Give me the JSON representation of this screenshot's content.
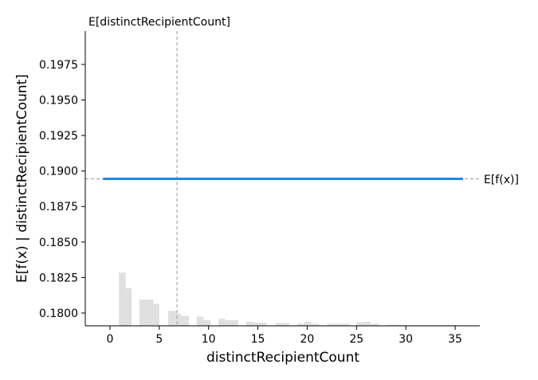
{
  "chart_data": {
    "type": "line",
    "xlabel": "distinctRecipientCount",
    "ylabel": "E[f(x) | distinctRecipientCount]",
    "xlim": [
      -2.5,
      37.5
    ],
    "ylim": [
      0.1791,
      0.19985
    ],
    "x_ticks": [
      0,
      5,
      10,
      15,
      20,
      25,
      30,
      35
    ],
    "y_ticks": [
      0.18,
      0.1825,
      0.185,
      0.1875,
      0.19,
      0.1925,
      0.195,
      0.1975
    ],
    "x_tick_labels": [
      "0",
      "5",
      "10",
      "15",
      "20",
      "25",
      "30",
      "35"
    ],
    "y_tick_labels": [
      "0.1800",
      "0.1825",
      "0.1850",
      "0.1875",
      "0.1900",
      "0.1925",
      "0.1950",
      "0.1975"
    ],
    "series": [
      {
        "x": [
          -0.7,
          35.8
        ],
        "y": [
          0.18945,
          0.18945
        ],
        "color": "#1e88e5"
      }
    ],
    "expected_value_x": 6.8,
    "expected_value_x_label": "E[distinctRecipientCount]",
    "expected_value_y": 0.18945,
    "expected_value_y_label": "E[f(x)]",
    "histogram": {
      "color": "#e0e0e0",
      "bins": [
        {
          "x0": 0.9,
          "x1": 1.6,
          "h": 0.00375
        },
        {
          "x0": 1.6,
          "x1": 2.2,
          "h": 0.00265
        },
        {
          "x0": 3.0,
          "x1": 4.4,
          "h": 0.00185
        },
        {
          "x0": 4.4,
          "x1": 5.0,
          "h": 0.00155
        },
        {
          "x0": 5.9,
          "x1": 6.8,
          "h": 0.00105
        },
        {
          "x0": 6.8,
          "x1": 7.2,
          "h": 0.00085
        },
        {
          "x0": 7.2,
          "x1": 8.0,
          "h": 0.0007
        },
        {
          "x0": 8.8,
          "x1": 9.5,
          "h": 0.00065
        },
        {
          "x0": 9.5,
          "x1": 10.2,
          "h": 0.0004
        },
        {
          "x0": 11.0,
          "x1": 11.7,
          "h": 0.0005
        },
        {
          "x0": 11.7,
          "x1": 13.0,
          "h": 0.0004
        },
        {
          "x0": 13.8,
          "x1": 14.5,
          "h": 0.0003
        },
        {
          "x0": 14.5,
          "x1": 15.9,
          "h": 0.00022
        },
        {
          "x0": 16.8,
          "x1": 18.2,
          "h": 0.0002
        },
        {
          "x0": 19.0,
          "x1": 19.7,
          "h": 0.00015
        },
        {
          "x0": 19.7,
          "x1": 20.4,
          "h": 0.0003
        },
        {
          "x0": 20.4,
          "x1": 21.2,
          "h": 0.00015
        },
        {
          "x0": 22.0,
          "x1": 24.3,
          "h": 0.00015
        },
        {
          "x0": 25.0,
          "x1": 25.8,
          "h": 0.00025
        },
        {
          "x0": 25.8,
          "x1": 26.4,
          "h": 0.0003
        },
        {
          "x0": 26.4,
          "x1": 27.3,
          "h": 0.00015
        },
        {
          "x0": 28.0,
          "x1": 29.4,
          "h": 8e-05
        },
        {
          "x0": 29.4,
          "x1": 35.5,
          "h": 5e-05
        }
      ]
    }
  }
}
